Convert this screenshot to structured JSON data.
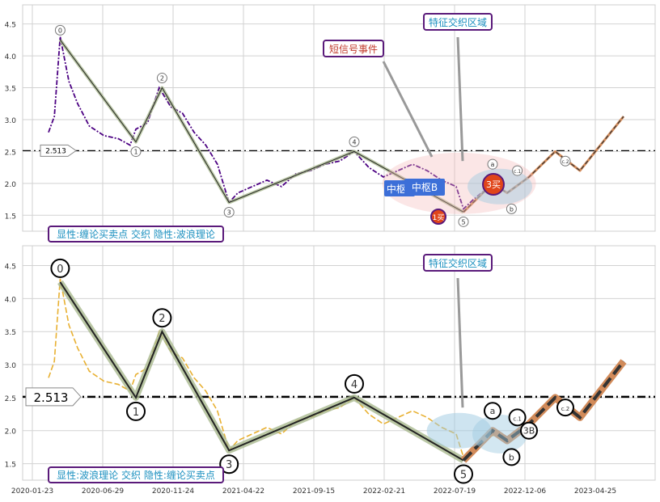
{
  "colors": {
    "grid": "#d2d2d2",
    "purple_line": "#4b0082",
    "gold_line": "#e8b031",
    "wave_edge": "#a9b98f",
    "support_line": "#000000",
    "box_border": "#5a1a7a",
    "box_text_blue": "#1a8fbf",
    "box_text_red": "#c0392b",
    "zs_blue": "#3c6fd8",
    "buy_red": "#e0451a",
    "forecast": "#d28b5a"
  },
  "chart_data": [
    {
      "type": "line",
      "name": "top-panel",
      "ylim": [
        1.25,
        4.8
      ],
      "yticks": [
        "1.5",
        "2.0",
        "2.5",
        "3.0",
        "3.5",
        "4.0",
        "4.5"
      ],
      "support_level": 2.513,
      "support_label": "2.513",
      "price_points": [
        [
          0,
          2.8
        ],
        [
          4,
          3.05
        ],
        [
          8,
          4.3
        ],
        [
          14,
          3.6
        ],
        [
          20,
          3.25
        ],
        [
          28,
          2.9
        ],
        [
          38,
          2.75
        ],
        [
          48,
          2.7
        ],
        [
          56,
          2.6
        ],
        [
          60,
          2.85
        ],
        [
          68,
          2.95
        ],
        [
          76,
          3.5
        ],
        [
          84,
          3.2
        ],
        [
          92,
          3.1
        ],
        [
          100,
          2.8
        ],
        [
          108,
          2.6
        ],
        [
          116,
          2.3
        ],
        [
          120,
          2.0
        ],
        [
          124,
          1.7
        ],
        [
          130,
          1.85
        ],
        [
          140,
          1.95
        ],
        [
          150,
          2.05
        ],
        [
          160,
          1.95
        ],
        [
          170,
          2.15
        ],
        [
          180,
          2.2
        ],
        [
          190,
          2.3
        ],
        [
          200,
          2.35
        ],
        [
          210,
          2.5
        ],
        [
          220,
          2.25
        ],
        [
          230,
          2.1
        ],
        [
          240,
          2.2
        ],
        [
          250,
          2.3
        ],
        [
          260,
          2.2
        ],
        [
          270,
          2.05
        ],
        [
          280,
          1.95
        ],
        [
          285,
          1.6
        ],
        [
          292,
          1.75
        ],
        [
          300,
          1.9
        ],
        [
          310,
          1.95
        ]
      ],
      "wave_points": [
        {
          "x": 8,
          "y": 4.25,
          "label": "0"
        },
        {
          "x": 60,
          "y": 2.65,
          "label": "1"
        },
        {
          "x": 78,
          "y": 3.5,
          "label": "2"
        },
        {
          "x": 124,
          "y": 1.7,
          "label": "3"
        },
        {
          "x": 210,
          "y": 2.5,
          "label": "4"
        },
        {
          "x": 285,
          "y": 1.55,
          "label": "5"
        }
      ],
      "forecast_points": [
        [
          285,
          1.55
        ],
        [
          305,
          2.0
        ],
        [
          315,
          1.85
        ],
        [
          330,
          2.1
        ],
        [
          348,
          2.5
        ],
        [
          365,
          2.2
        ],
        [
          395,
          3.05
        ]
      ],
      "annotations": [
        "短信号事件",
        "特征交织区域"
      ],
      "zs_labels": [
        "中枢A",
        "中枢B"
      ],
      "buy_labels": [
        "1买",
        "3买"
      ],
      "sub_labels": [
        "a",
        "b",
        "c.1",
        "c.2"
      ],
      "panel_label": "显性:缠论买卖点 交织 隐性:波浪理论"
    },
    {
      "type": "line",
      "name": "bottom-panel",
      "ylim": [
        1.25,
        4.8
      ],
      "yticks": [
        "1.5",
        "2.0",
        "2.5",
        "3.0",
        "3.5",
        "4.0",
        "4.5"
      ],
      "support_level": 2.513,
      "support_label": "2.513",
      "xticks": [
        "2020-01-23",
        "2020-06-29",
        "2020-11-24",
        "2021-04-22",
        "2021-09-15",
        "2022-02-21",
        "2022-07-19",
        "2022-12-06",
        "2023-04-25"
      ],
      "wave_points": [
        {
          "x": 8,
          "y": 4.25,
          "label": "0"
        },
        {
          "x": 60,
          "y": 2.5,
          "label": "1"
        },
        {
          "x": 78,
          "y": 3.5,
          "label": "2"
        },
        {
          "x": 124,
          "y": 1.7,
          "label": "3"
        },
        {
          "x": 210,
          "y": 2.5,
          "label": "4"
        },
        {
          "x": 285,
          "y": 1.55,
          "label": "5"
        }
      ],
      "sub_labels": [
        "a",
        "b",
        "c.1",
        "c.2",
        "3B"
      ],
      "annotations": [
        "特征交织区域"
      ],
      "panel_label": "显性:波浪理论 交织 隐性:缠论买卖点"
    }
  ]
}
